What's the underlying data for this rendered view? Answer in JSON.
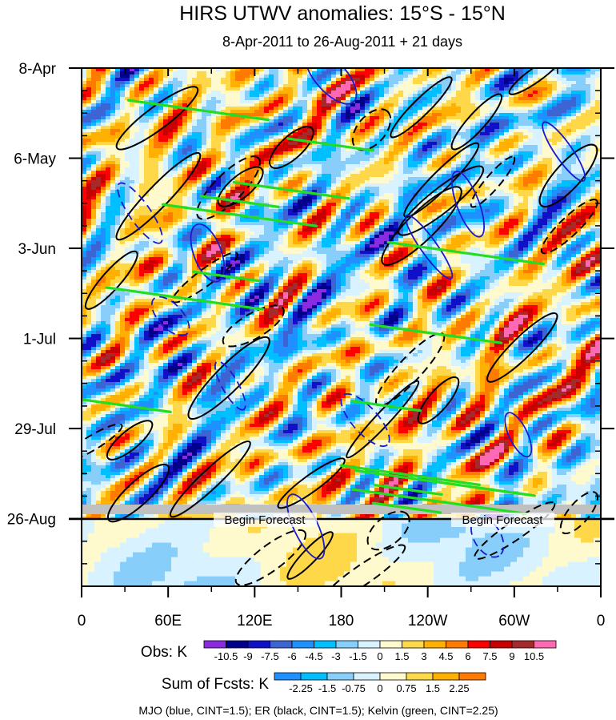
{
  "chart_data": {
    "type": "heatmap",
    "title": "HIRS UTWV anomalies: 15°S - 15°N",
    "subtitle": "8-Apr-2011 to 26-Aug-2011 + 21 days",
    "y_tick_labels": [
      "8-Apr",
      "6-May",
      "3-Jun",
      "1-Jul",
      "29-Jul",
      "26-Aug"
    ],
    "y_tick_days": [
      0,
      28,
      56,
      84,
      112,
      140
    ],
    "y_range_days": [
      0,
      161
    ],
    "forecast_start_day": 140,
    "x_tick_labels": [
      "0",
      "60E",
      "120E",
      "180",
      "120W",
      "60W",
      "0"
    ],
    "x_tick_lon": [
      0,
      60,
      120,
      180,
      240,
      300,
      360
    ],
    "x_range_lon": [
      0,
      360
    ],
    "forecast_label": "Begin Forecast",
    "obs_colorbar": {
      "label": "Obs: K",
      "levels": [
        "-10.5",
        "-9",
        "-7.5",
        "-6",
        "-4.5",
        "-3",
        "-1.5",
        "0",
        "1.5",
        "3",
        "4.5",
        "6",
        "7.5",
        "9",
        "10.5"
      ],
      "colors": [
        "#8a2be2",
        "#00008b",
        "#1010c8",
        "#3c64d2",
        "#1e90ff",
        "#00bfff",
        "#87cefa",
        "#d9f2ff",
        "#fffacd",
        "#ffd84a",
        "#ffb000",
        "#ff7a00",
        "#ff0000",
        "#c80000",
        "#a52a2a",
        "#ff69b4"
      ]
    },
    "fcst_colorbar": {
      "label": "Sum of Fcsts: K",
      "levels": [
        "-2.25",
        "-1.5",
        "-0.75",
        "0",
        "0.75",
        "1.5",
        "2.25"
      ],
      "colors": [
        "#1e90ff",
        "#00bfff",
        "#87cefa",
        "#d9f2ff",
        "#fffacd",
        "#ffd84a",
        "#ffb000",
        "#ff7a00"
      ]
    },
    "footnote": "MJO (blue, CINT=1.5); ER (black, CINT=1.5); Kelvin (green, CINT=2.25)",
    "contour_colors": {
      "mjo": "#1a1ad0",
      "er": "#000000",
      "kelvin": "#22dd22"
    }
  }
}
